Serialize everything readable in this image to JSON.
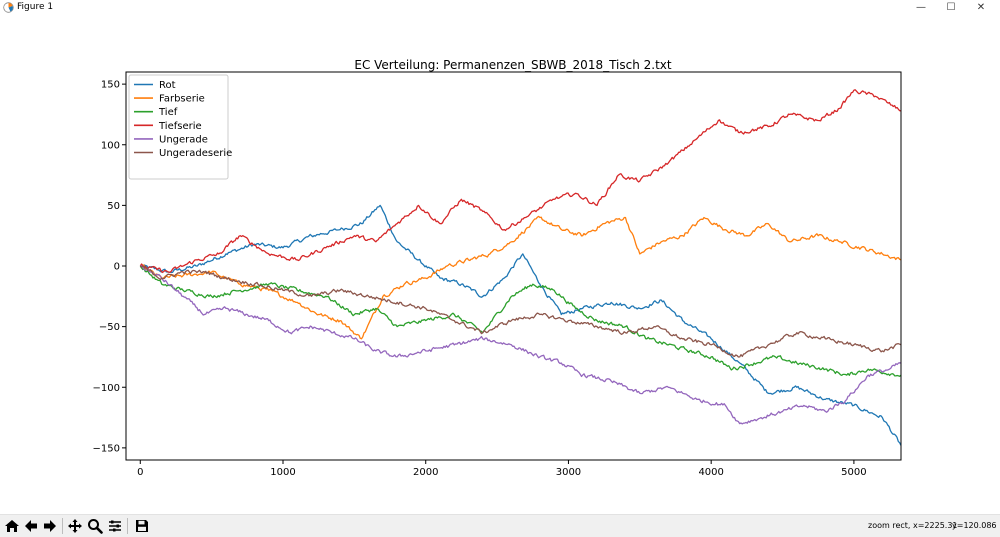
{
  "window": {
    "title": "Figure 1",
    "minimize_glyph": "—",
    "maximize_glyph": "☐",
    "close_glyph": "✕"
  },
  "toolbar": {
    "buttons": [
      "home-icon",
      "back-icon",
      "forward-icon",
      "pan-icon",
      "zoom-icon",
      "configure-subplots-icon",
      "save-icon"
    ],
    "status_mode": "zoom rect, x=2225.31",
    "status_y": "y=120.086"
  },
  "colors": {
    "Rot": "#1f77b4",
    "Farbserie": "#ff7f0e",
    "Tief": "#2ca02c",
    "Tiefserie": "#d62728",
    "Ungerade": "#9467bd",
    "Ungeradeserie": "#8c564b"
  },
  "chart_data": {
    "type": "line",
    "title": "EC Verteilung: Permanenzen_SBWB_2018_Tisch 2.txt",
    "xlabel": "",
    "ylabel": "",
    "xlim": [
      -100,
      5330
    ],
    "ylim": [
      -160,
      160
    ],
    "xticks": [
      0,
      1000,
      2000,
      3000,
      4000,
      5000
    ],
    "yticks": [
      -150,
      -100,
      -50,
      0,
      50,
      100,
      150
    ],
    "grid": false,
    "legend_position": "upper left",
    "series": [
      {
        "name": "Rot",
        "color": "#1f77b4",
        "x": [
          0,
          200,
          400,
          600,
          800,
          1000,
          1200,
          1400,
          1550,
          1680,
          1800,
          1950,
          2100,
          2250,
          2400,
          2550,
          2680,
          2800,
          2950,
          3100,
          3300,
          3500,
          3650,
          3800,
          4000,
          4200,
          4400,
          4600,
          4800,
          5000,
          5200,
          5330
        ],
        "y": [
          0,
          -5,
          0,
          10,
          18,
          15,
          25,
          30,
          35,
          50,
          20,
          5,
          -10,
          -15,
          -25,
          -10,
          10,
          -15,
          -40,
          -35,
          -30,
          -35,
          -28,
          -45,
          -60,
          -80,
          -105,
          -100,
          -110,
          -115,
          -125,
          -148
        ]
      },
      {
        "name": "Farbserie",
        "color": "#ff7f0e",
        "x": [
          0,
          150,
          300,
          500,
          700,
          900,
          1100,
          1250,
          1400,
          1550,
          1700,
          1850,
          2000,
          2150,
          2300,
          2450,
          2600,
          2800,
          2950,
          3100,
          3250,
          3400,
          3500,
          3650,
          3800,
          3950,
          4100,
          4250,
          4400,
          4550,
          4750,
          4900,
          5050,
          5200,
          5330
        ],
        "y": [
          0,
          -10,
          -8,
          -5,
          -15,
          -20,
          -30,
          -40,
          -45,
          -60,
          -25,
          -15,
          -10,
          0,
          5,
          10,
          20,
          40,
          30,
          25,
          35,
          40,
          10,
          20,
          25,
          40,
          30,
          25,
          35,
          20,
          25,
          20,
          15,
          10,
          5
        ]
      },
      {
        "name": "Tief",
        "color": "#2ca02c",
        "x": [
          0,
          150,
          300,
          500,
          700,
          900,
          1100,
          1300,
          1500,
          1650,
          1800,
          2000,
          2200,
          2400,
          2600,
          2750,
          2900,
          3050,
          3200,
          3400,
          3550,
          3700,
          3850,
          4000,
          4150,
          4300,
          4450,
          4600,
          4800,
          4950,
          5100,
          5330
        ],
        "y": [
          0,
          -15,
          -20,
          -25,
          -20,
          -15,
          -20,
          -25,
          -40,
          -35,
          -50,
          -45,
          -40,
          -55,
          -25,
          -15,
          -20,
          -35,
          -45,
          -50,
          -60,
          -65,
          -70,
          -75,
          -85,
          -80,
          -75,
          -80,
          -85,
          -90,
          -85,
          -90
        ]
      },
      {
        "name": "Tiefserie",
        "color": "#d62728",
        "x": [
          0,
          200,
          400,
          550,
          700,
          900,
          1100,
          1300,
          1500,
          1650,
          1800,
          1950,
          2100,
          2250,
          2400,
          2550,
          2700,
          2900,
          3050,
          3200,
          3350,
          3500,
          3700,
          3900,
          4050,
          4200,
          4400,
          4550,
          4750,
          4900,
          5000,
          5150,
          5330
        ],
        "y": [
          0,
          -5,
          5,
          10,
          25,
          10,
          5,
          15,
          25,
          20,
          35,
          50,
          35,
          55,
          45,
          30,
          40,
          55,
          60,
          50,
          75,
          70,
          85,
          105,
          120,
          110,
          115,
          125,
          120,
          130,
          145,
          140,
          128
        ]
      },
      {
        "name": "Ungerade",
        "color": "#9467bd",
        "x": [
          0,
          150,
          300,
          450,
          600,
          750,
          900,
          1050,
          1200,
          1350,
          1500,
          1650,
          1800,
          2000,
          2200,
          2400,
          2600,
          2800,
          2950,
          3100,
          3300,
          3500,
          3700,
          3900,
          4100,
          4200,
          4350,
          4500,
          4650,
          4800,
          4950,
          5100,
          5250,
          5330
        ],
        "y": [
          0,
          -10,
          -25,
          -40,
          -35,
          -40,
          -45,
          -55,
          -50,
          -55,
          -60,
          -70,
          -75,
          -70,
          -65,
          -60,
          -65,
          -75,
          -80,
          -90,
          -95,
          -105,
          -100,
          -110,
          -115,
          -130,
          -125,
          -120,
          -115,
          -120,
          -110,
          -90,
          -85,
          -80
        ]
      },
      {
        "name": "Ungeradeserie",
        "color": "#8c564b",
        "x": [
          0,
          150,
          300,
          450,
          600,
          800,
          1000,
          1200,
          1400,
          1600,
          1800,
          2000,
          2200,
          2400,
          2600,
          2800,
          3000,
          3200,
          3400,
          3600,
          3800,
          4000,
          4200,
          4400,
          4600,
          4800,
          5000,
          5200,
          5330
        ],
        "y": [
          0,
          -10,
          -5,
          -5,
          -10,
          -15,
          -20,
          -25,
          -20,
          -25,
          -30,
          -35,
          -45,
          -55,
          -45,
          -40,
          -45,
          -50,
          -55,
          -50,
          -60,
          -65,
          -75,
          -65,
          -55,
          -60,
          -65,
          -70,
          -65
        ]
      }
    ]
  }
}
